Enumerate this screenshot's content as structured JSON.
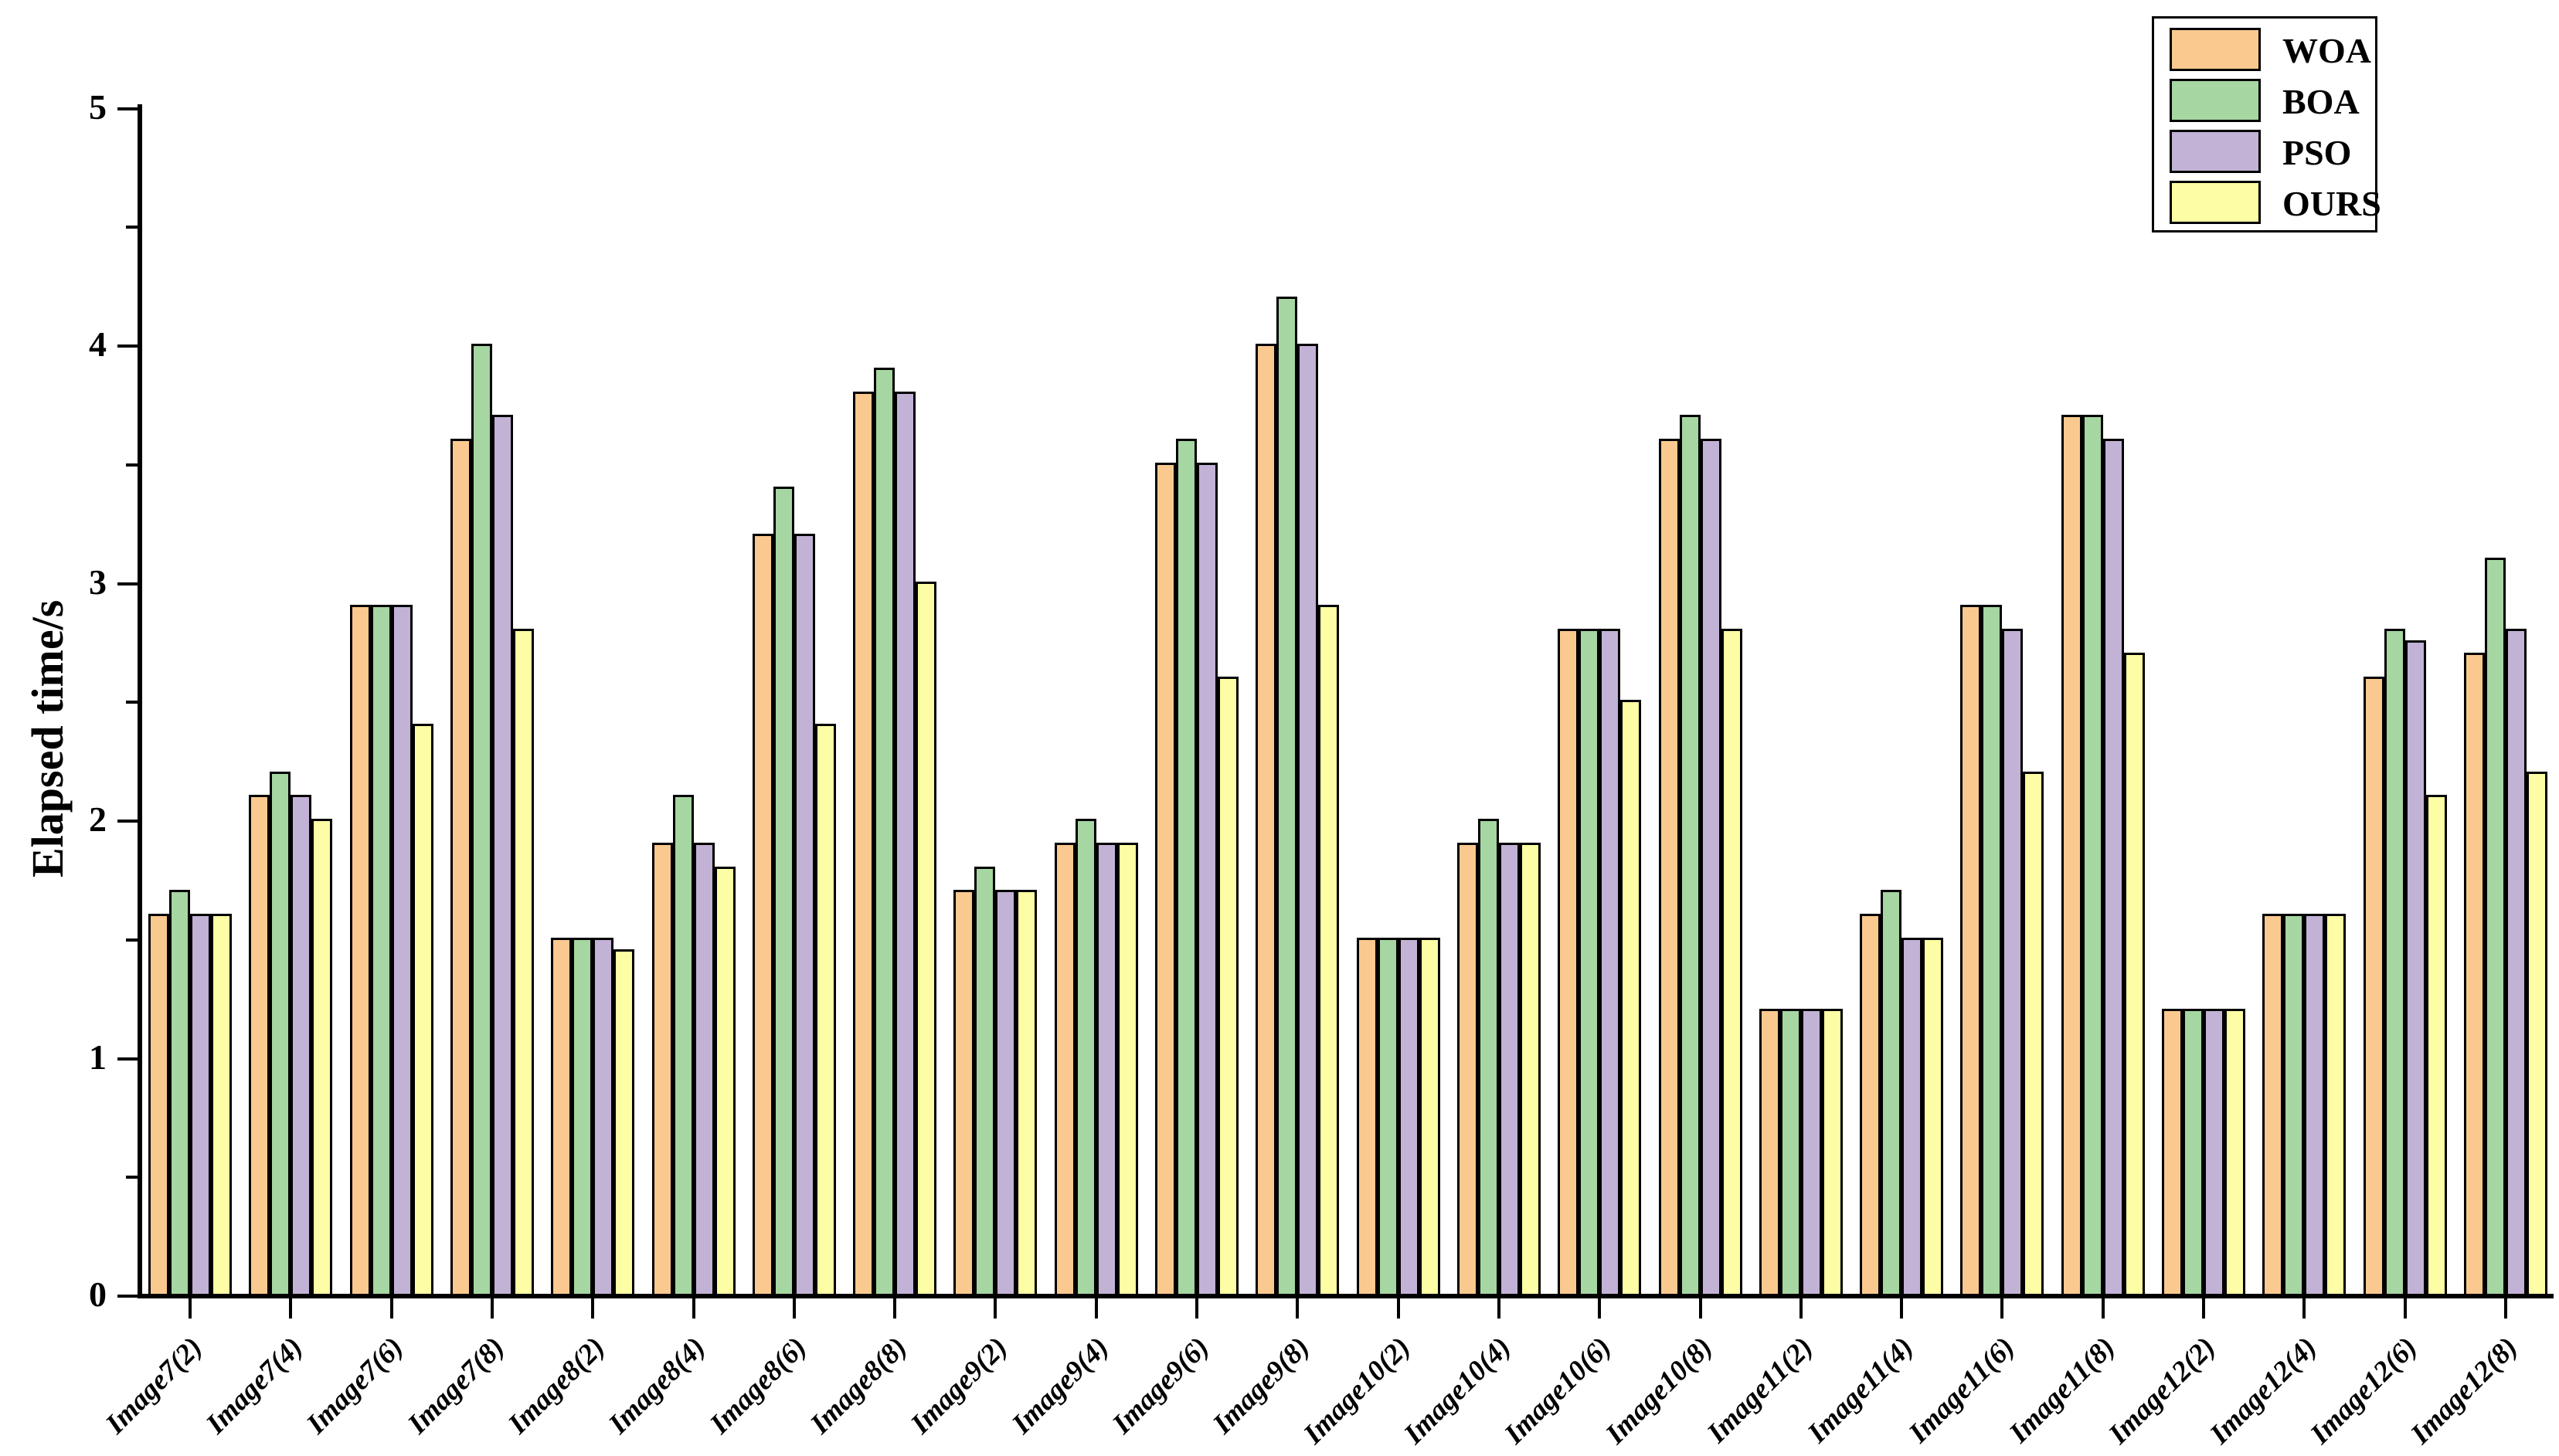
{
  "y_axis": {
    "title": "Elapsed time/s",
    "tick_labels": [
      "0",
      "1",
      "2",
      "3",
      "4",
      "5"
    ],
    "minor_tick_step": 0.5,
    "min": 0,
    "max": 5
  },
  "legend": {
    "position": "top-right",
    "entries": [
      {
        "label": "WOA",
        "color": "#FAC98F"
      },
      {
        "label": "BOA",
        "color": "#A6D6A2"
      },
      {
        "label": "PSO",
        "color": "#C2B2D6"
      },
      {
        "label": "OURS",
        "color": "#FDFDA5"
      }
    ]
  },
  "colors": {
    "axis": "#000000",
    "bar_border": "#000000",
    "background": "#FFFFFF"
  },
  "chart_data": {
    "type": "bar",
    "title": "",
    "xlabel": "",
    "ylabel": "Elapsed time/s",
    "ylim": [
      0,
      5
    ],
    "grid": false,
    "legend_position": "top-right",
    "categories": [
      "Image7(2)",
      "Image7(4)",
      "Image7(6)",
      "Image7(8)",
      "Image8(2)",
      "Image8(4)",
      "Image8(6)",
      "Image8(8)",
      "Image9(2)",
      "Image9(4)",
      "Image9(6)",
      "Image9(8)",
      "Image10(2)",
      "Image10(4)",
      "Image10(6)",
      "Image10(8)",
      "Image11(2)",
      "Image11(4)",
      "Image11(6)",
      "Image11(8)",
      "Image12(2)",
      "Image12(4)",
      "Image12(6)",
      "Image12(8)"
    ],
    "series": [
      {
        "name": "WOA",
        "color": "#FAC98F",
        "values": [
          1.6,
          2.1,
          2.9,
          3.6,
          1.5,
          1.9,
          3.2,
          3.8,
          1.7,
          1.9,
          3.5,
          4.0,
          1.5,
          1.9,
          2.8,
          3.6,
          1.2,
          1.6,
          2.9,
          3.7,
          1.2,
          1.6,
          2.6,
          2.7
        ]
      },
      {
        "name": "BOA",
        "color": "#A6D6A2",
        "values": [
          1.7,
          2.2,
          2.9,
          4.0,
          1.5,
          2.1,
          3.4,
          3.9,
          1.8,
          2.0,
          3.6,
          4.2,
          1.5,
          2.0,
          2.8,
          3.7,
          1.2,
          1.7,
          2.9,
          3.7,
          1.2,
          1.6,
          2.8,
          3.1
        ]
      },
      {
        "name": "PSO",
        "color": "#C2B2D6",
        "values": [
          1.6,
          2.1,
          2.9,
          3.7,
          1.5,
          1.9,
          3.2,
          3.8,
          1.7,
          1.9,
          3.5,
          4.0,
          1.5,
          1.9,
          2.8,
          3.6,
          1.2,
          1.5,
          2.8,
          3.6,
          1.2,
          1.6,
          2.75,
          2.8
        ]
      },
      {
        "name": "OURS",
        "color": "#FDFDA5",
        "values": [
          1.6,
          2.0,
          2.4,
          2.8,
          1.45,
          1.8,
          2.4,
          3.0,
          1.7,
          1.9,
          2.6,
          2.9,
          1.5,
          1.9,
          2.5,
          2.8,
          1.2,
          1.5,
          2.2,
          2.7,
          1.2,
          1.6,
          2.1,
          2.2
        ]
      }
    ]
  }
}
